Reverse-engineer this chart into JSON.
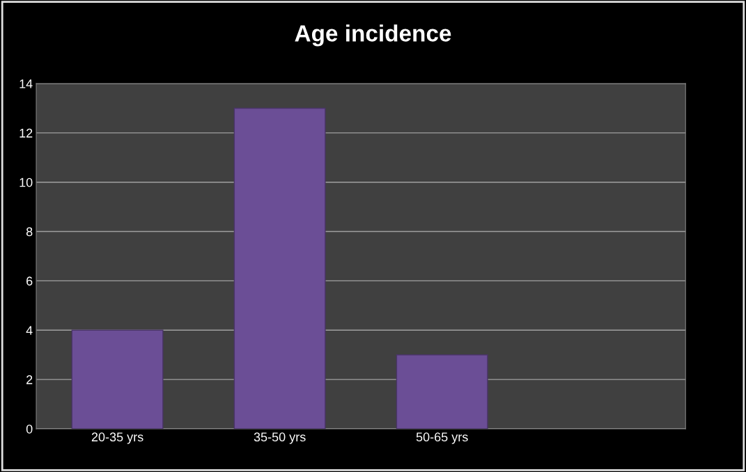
{
  "chart_data": {
    "type": "bar",
    "title": "Age incidence",
    "categories": [
      "20-35 yrs",
      "35-50 yrs",
      "50-65 yrs",
      null
    ],
    "values": [
      4,
      13,
      3,
      null
    ],
    "color": "#6b4e96",
    "ylim": [
      0,
      14
    ],
    "yticks": [
      0,
      2,
      4,
      6,
      8,
      10,
      12,
      14
    ],
    "grid": "y",
    "legend": false
  }
}
